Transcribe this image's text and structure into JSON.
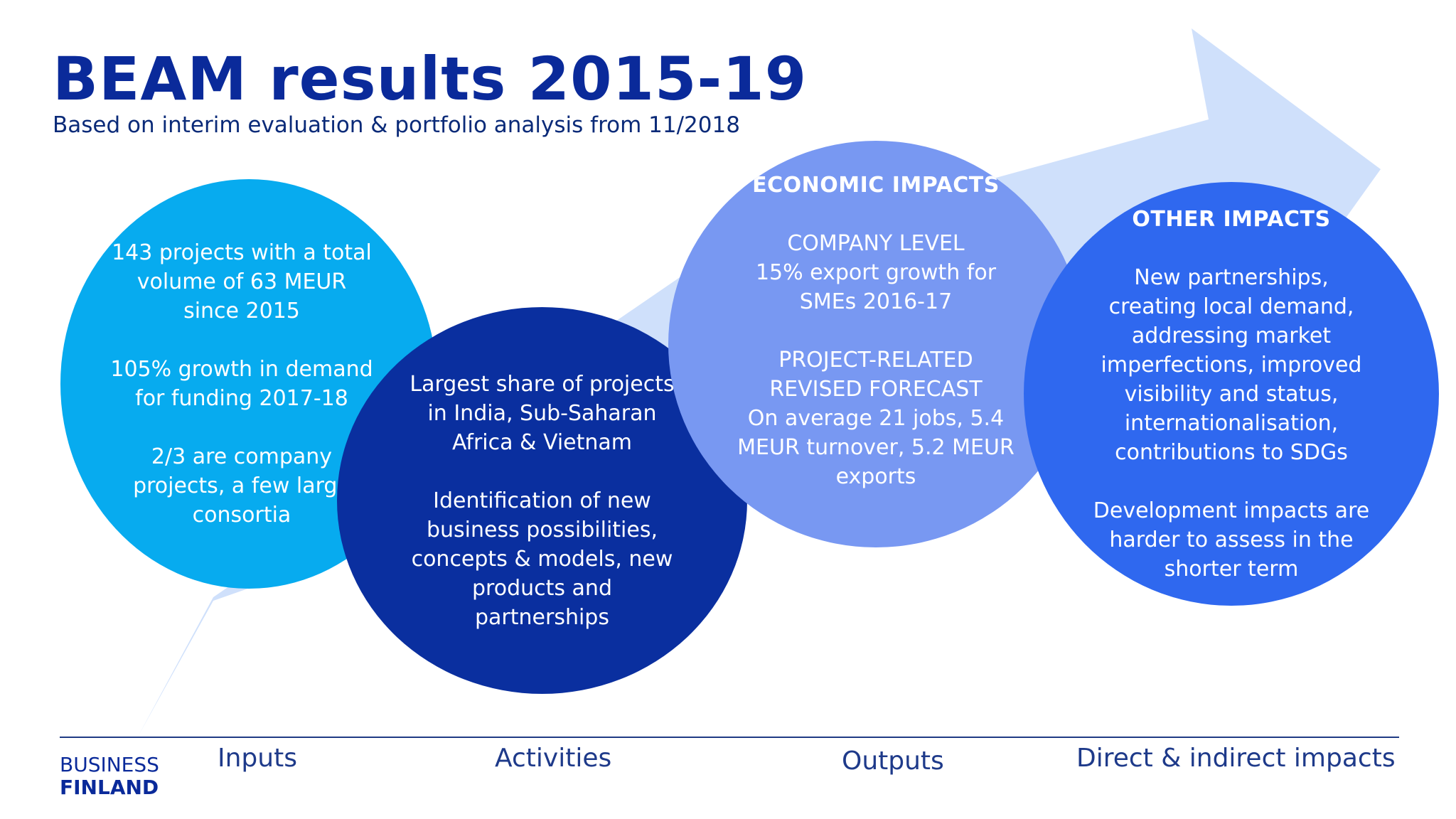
{
  "header": {
    "title": "BEAM results 2015-19",
    "subtitle": "Based on interim evaluation & portfolio analysis from 11/2018"
  },
  "circles": {
    "inputs": {
      "paragraphs": [
        "143 projects with a total\nvolume of 63 MEUR\nsince 2015",
        "105% growth in demand\nfor funding 2017-18",
        "2/3 are company\nprojects, a few large\nconsortia"
      ]
    },
    "activities": {
      "paragraphs": [
        "Largest share of projects\nin India, Sub-Saharan\nAfrica & Vietnam",
        "Identification of new\nbusiness possibilities,\nconcepts & models, new\nproducts and\npartnerships"
      ]
    },
    "outputs": {
      "heading": "ECONOMIC IMPACTS",
      "paragraphs": [
        "COMPANY LEVEL\n15% export growth for\nSMEs 2016-17",
        "PROJECT-RELATED\nREVISED FORECAST\nOn average 21 jobs, 5.4\nMEUR turnover, 5.2 MEUR\nexports"
      ]
    },
    "impacts": {
      "heading": "OTHER IMPACTS",
      "paragraphs": [
        "New partnerships,\ncreating local demand,\naddressing market\nimperfections, improved\nvisibility and status,\ninternationalisation,\ncontributions to SDGs",
        "Development impacts are\nharder to assess in the\nshorter term"
      ]
    }
  },
  "stages": [
    "Inputs",
    "Activities",
    "Outputs",
    "Direct & indirect impacts"
  ],
  "logo": {
    "line1": "BUSINESS",
    "line2": "FINLAND"
  },
  "colors": {
    "title": "#0a2a9a",
    "arrow": "#cfe0fb",
    "inputs": "#07abef",
    "activities": "#0a2f9f",
    "outputs": "#7898f2",
    "impacts": "#2f68ef"
  }
}
